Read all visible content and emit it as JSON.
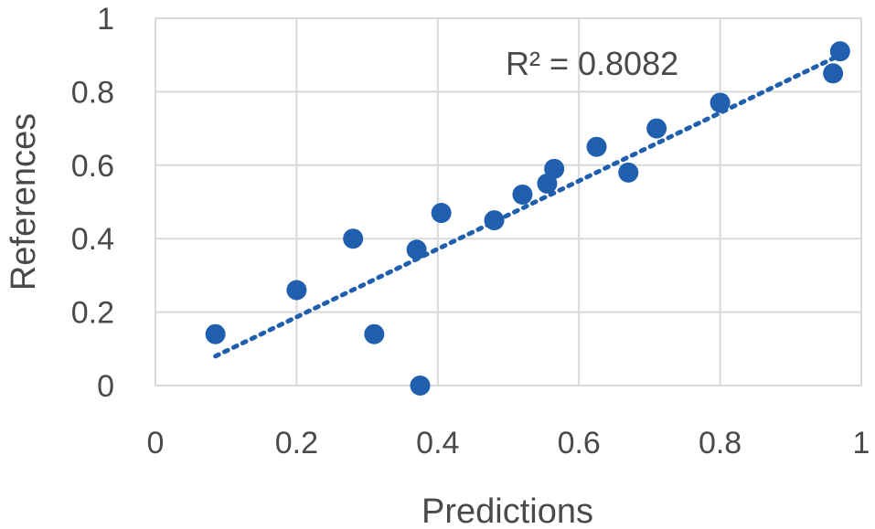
{
  "chart_data": {
    "type": "scatter",
    "title": "",
    "xlabel": "Predictions",
    "ylabel": "References",
    "xlim": [
      0,
      1
    ],
    "ylim": [
      0,
      1
    ],
    "x_ticks": [
      "0",
      "0.2",
      "0.4",
      "0.6",
      "0.8",
      "1"
    ],
    "y_ticks": [
      "0",
      "0.2",
      "0.4",
      "0.6",
      "0.8",
      "1"
    ],
    "grid": true,
    "series": [
      {
        "color": "#1f5fad",
        "points": [
          {
            "x": 0.085,
            "y": 0.14
          },
          {
            "x": 0.2,
            "y": 0.26
          },
          {
            "x": 0.28,
            "y": 0.4
          },
          {
            "x": 0.31,
            "y": 0.14
          },
          {
            "x": 0.37,
            "y": 0.37
          },
          {
            "x": 0.375,
            "y": 0.0
          },
          {
            "x": 0.405,
            "y": 0.47
          },
          {
            "x": 0.48,
            "y": 0.45
          },
          {
            "x": 0.52,
            "y": 0.52
          },
          {
            "x": 0.555,
            "y": 0.55
          },
          {
            "x": 0.565,
            "y": 0.59
          },
          {
            "x": 0.625,
            "y": 0.65
          },
          {
            "x": 0.67,
            "y": 0.58
          },
          {
            "x": 0.71,
            "y": 0.7
          },
          {
            "x": 0.8,
            "y": 0.77
          },
          {
            "x": 0.96,
            "y": 0.85
          },
          {
            "x": 0.97,
            "y": 0.91
          }
        ]
      }
    ],
    "trendline": {
      "style": "dotted",
      "color": "#1f5fad",
      "x_range": [
        0.085,
        0.97
      ],
      "y_range": [
        0.08,
        0.9
      ],
      "label": "R² = 0.8082"
    }
  }
}
